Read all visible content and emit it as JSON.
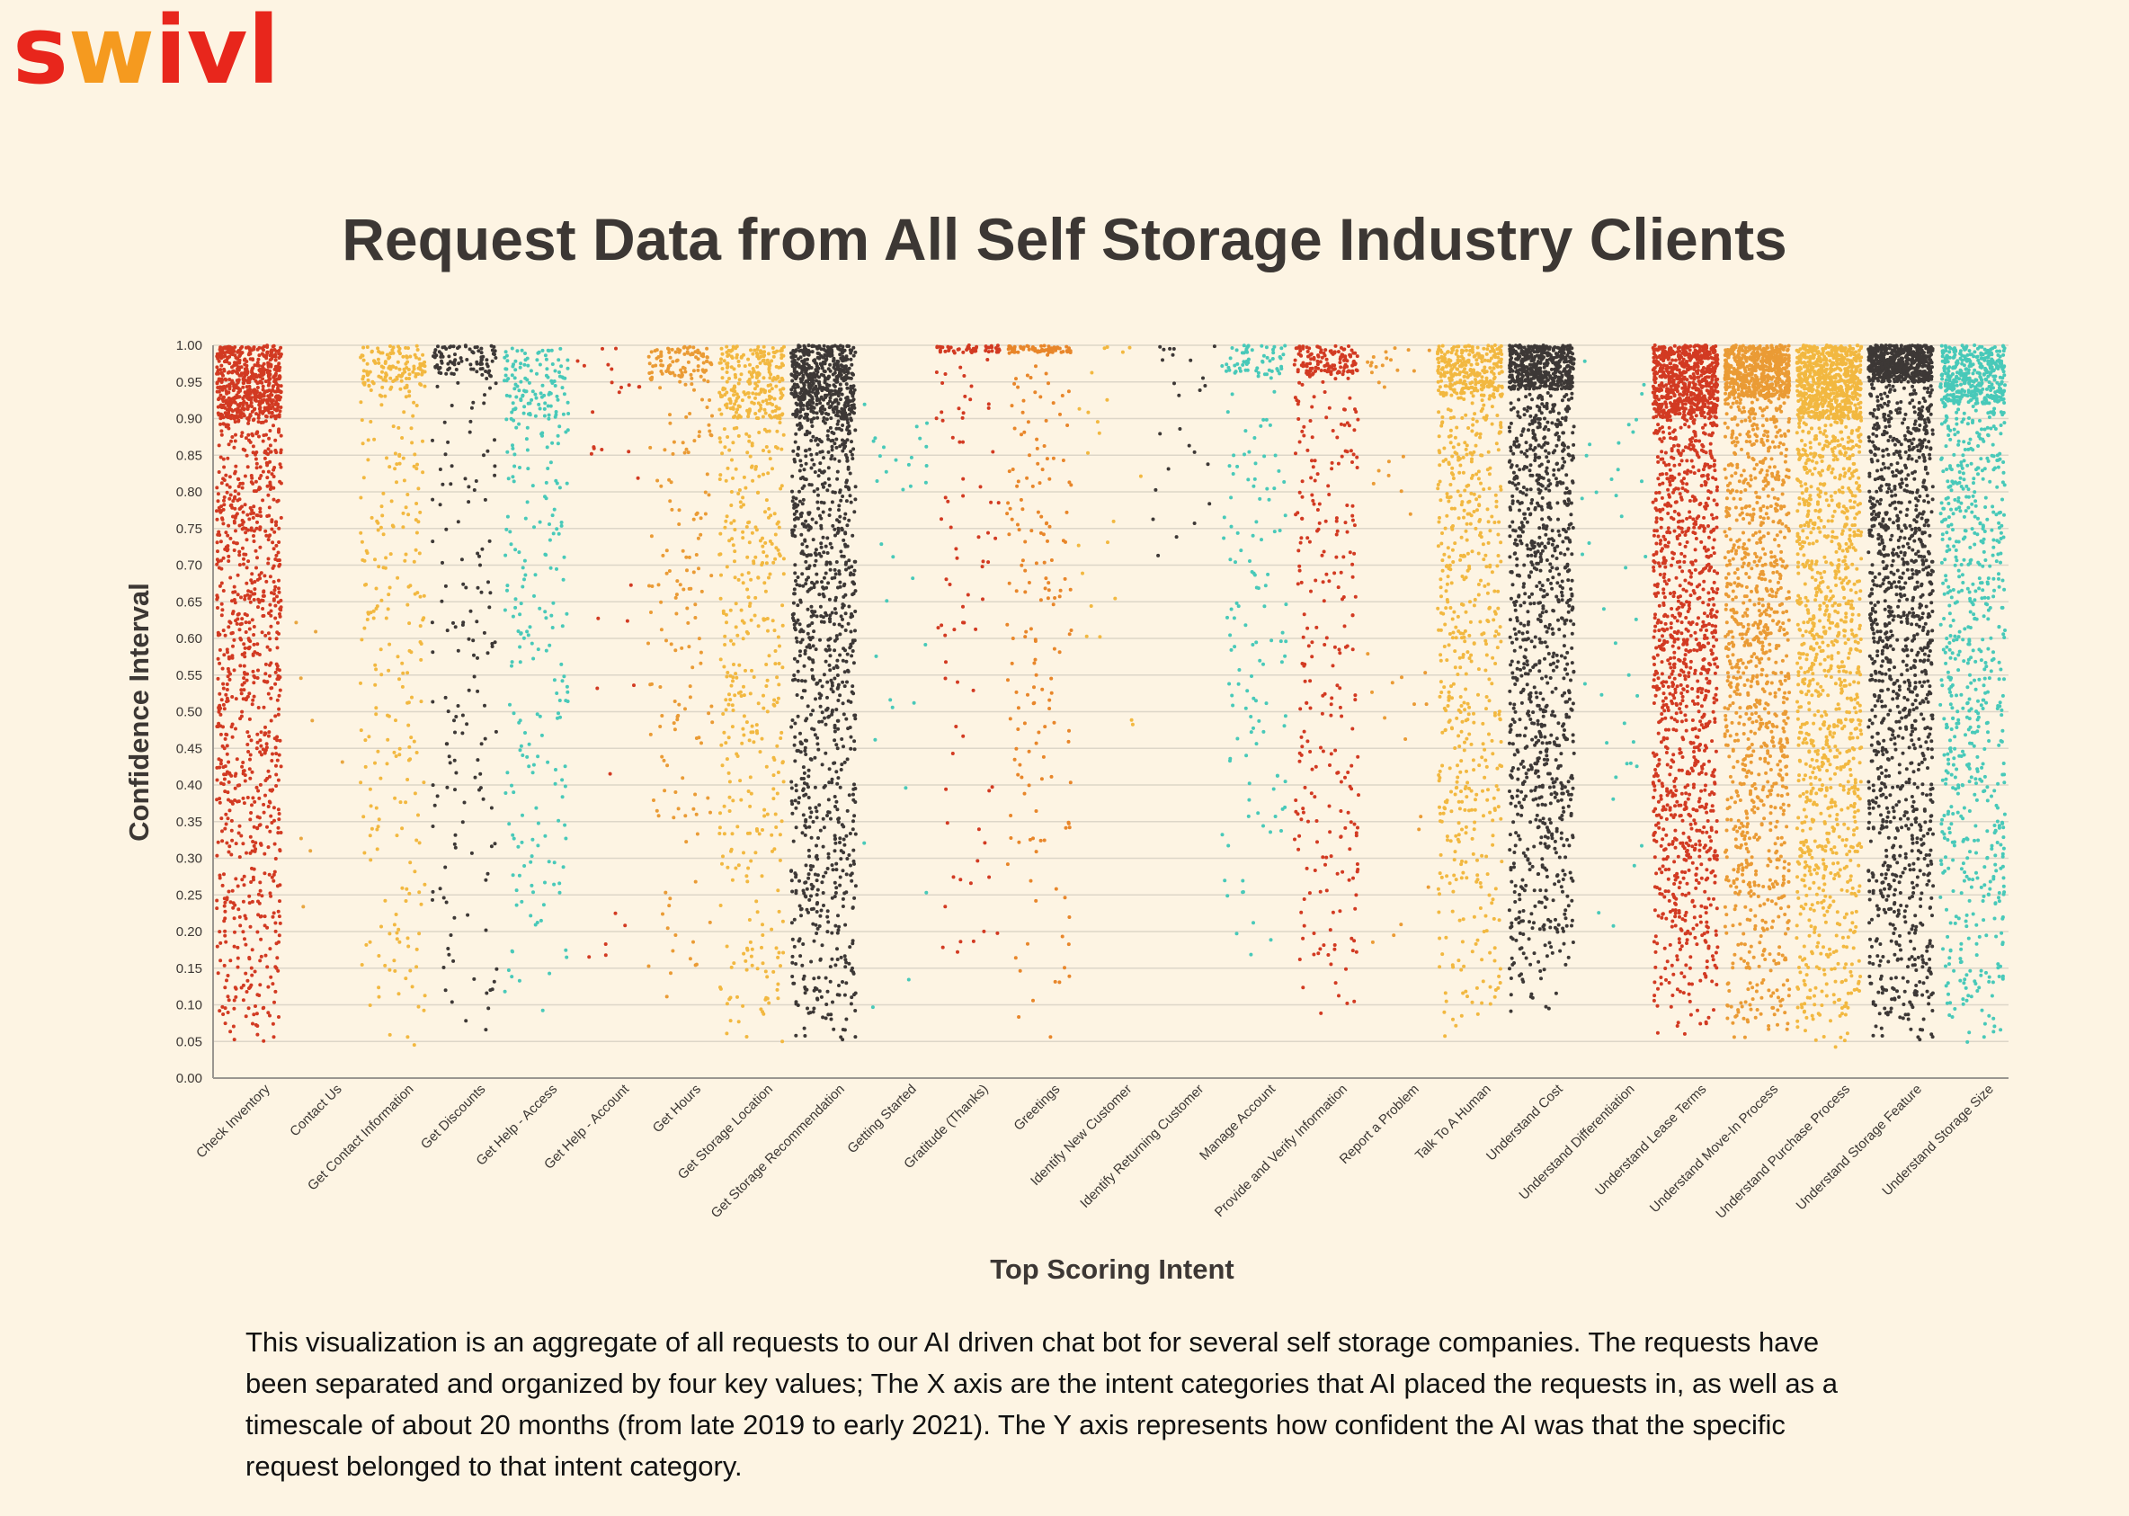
{
  "brand": {
    "logo_text": "swivl",
    "colors": {
      "primary": "#e8261c",
      "secondary": "#f59a1f"
    }
  },
  "page_title": "Request Data from All Self Storage Industry Clients",
  "caption": "This visualization is an aggregate of all requests to our AI driven chat bot for several self storage companies. The requests have been separated and organized by four key values; The X axis are the intent categories that AI placed the requests in, as well as a timescale of about 20 months (from late 2019 to early 2021). The Y axis represents how confident the AI was that the specific request belonged to that intent category.",
  "chart_data": {
    "type": "scatter",
    "title": "Request Data from All Self Storage Industry Clients",
    "xlabel": "Top Scoring Intent",
    "ylabel": "Confidence Interval",
    "ylim": [
      0,
      1
    ],
    "yticks": [
      "0.00",
      "0.05",
      "0.10",
      "0.15",
      "0.20",
      "0.25",
      "0.30",
      "0.35",
      "0.40",
      "0.45",
      "0.50",
      "0.55",
      "0.60",
      "0.65",
      "0.70",
      "0.75",
      "0.80",
      "0.85",
      "0.90",
      "0.95",
      "1.00"
    ],
    "grid": true,
    "legend": "none",
    "categories": [
      {
        "name": "Check Inventory",
        "color": "#d23a22",
        "count": 2600,
        "min": 0.04,
        "max": 1.0,
        "top_band": 0.9
      },
      {
        "name": "Contact Us",
        "color": "#e8a640",
        "count": 14,
        "min": 0.04,
        "max": 0.68,
        "top_band": 0.0
      },
      {
        "name": "Get Contact Information",
        "color": "#f2b840",
        "count": 650,
        "min": 0.02,
        "max": 1.0,
        "top_band": 0.94
      },
      {
        "name": "Get Discounts",
        "color": "#3d3836",
        "count": 420,
        "min": 0.04,
        "max": 1.0,
        "top_band": 0.96
      },
      {
        "name": "Get Help - Access",
        "color": "#48c9b9",
        "count": 560,
        "min": 0.09,
        "max": 1.0,
        "top_band": 0.9
      },
      {
        "name": "Get Help - Account",
        "color": "#d23a22",
        "count": 55,
        "min": 0.1,
        "max": 1.0,
        "top_band": 0.94
      },
      {
        "name": "Get Hours",
        "color": "#ea9b35",
        "count": 440,
        "min": 0.1,
        "max": 1.0,
        "top_band": 0.95
      },
      {
        "name": "Get Storage Location",
        "color": "#f2b840",
        "count": 1100,
        "min": 0.04,
        "max": 1.0,
        "top_band": 0.9
      },
      {
        "name": "Get Storage Recommendation",
        "color": "#3d3836",
        "count": 2600,
        "min": 0.05,
        "max": 1.0,
        "top_band": 0.9
      },
      {
        "name": "Getting Started",
        "color": "#48c9b9",
        "count": 60,
        "min": 0.03,
        "max": 0.92,
        "top_band": 0.0
      },
      {
        "name": "Gratitude (Thanks)",
        "color": "#d23a22",
        "count": 220,
        "min": 0.1,
        "max": 1.0,
        "top_band": 0.99
      },
      {
        "name": "Greetings",
        "color": "#e8862a",
        "count": 420,
        "min": 0.03,
        "max": 1.0,
        "top_band": 0.99
      },
      {
        "name": "Identify New Customer",
        "color": "#f2b840",
        "count": 40,
        "min": 0.46,
        "max": 1.0,
        "top_band": 0.99
      },
      {
        "name": "Identify Returning Customer",
        "color": "#3d3836",
        "count": 45,
        "min": 0.68,
        "max": 1.0,
        "top_band": 0.99
      },
      {
        "name": "Manage Account",
        "color": "#48c9b9",
        "count": 330,
        "min": 0.14,
        "max": 1.0,
        "top_band": 0.96
      },
      {
        "name": "Provide and Verify Information",
        "color": "#d23a22",
        "count": 700,
        "min": 0.07,
        "max": 1.0,
        "top_band": 0.96
      },
      {
        "name": "Report a Problem",
        "color": "#ea9b35",
        "count": 70,
        "min": 0.12,
        "max": 1.0,
        "top_band": 0.96
      },
      {
        "name": "Talk To A Human",
        "color": "#f2b840",
        "count": 1500,
        "min": 0.05,
        "max": 1.0,
        "top_band": 0.93
      },
      {
        "name": "Understand Cost",
        "color": "#3d3836",
        "count": 2600,
        "min": 0.09,
        "max": 1.0,
        "top_band": 0.94
      },
      {
        "name": "Understand Differentiation",
        "color": "#48c9b9",
        "count": 70,
        "min": 0.15,
        "max": 0.98,
        "top_band": 0.0
      },
      {
        "name": "Understand Lease Terms",
        "color": "#d23a22",
        "count": 3300,
        "min": 0.06,
        "max": 1.0,
        "top_band": 0.9
      },
      {
        "name": "Understand Move-In Process",
        "color": "#ea9b35",
        "count": 3000,
        "min": 0.05,
        "max": 1.0,
        "top_band": 0.93
      },
      {
        "name": "Understand Purchase Process",
        "color": "#f2b840",
        "count": 3300,
        "min": 0.04,
        "max": 1.0,
        "top_band": 0.9
      },
      {
        "name": "Understand Storage Feature",
        "color": "#3d3836",
        "count": 3300,
        "min": 0.05,
        "max": 1.0,
        "top_band": 0.95
      },
      {
        "name": "Understand Storage Size",
        "color": "#48c9b9",
        "count": 2000,
        "min": 0.03,
        "max": 1.0,
        "top_band": 0.92
      }
    ]
  }
}
